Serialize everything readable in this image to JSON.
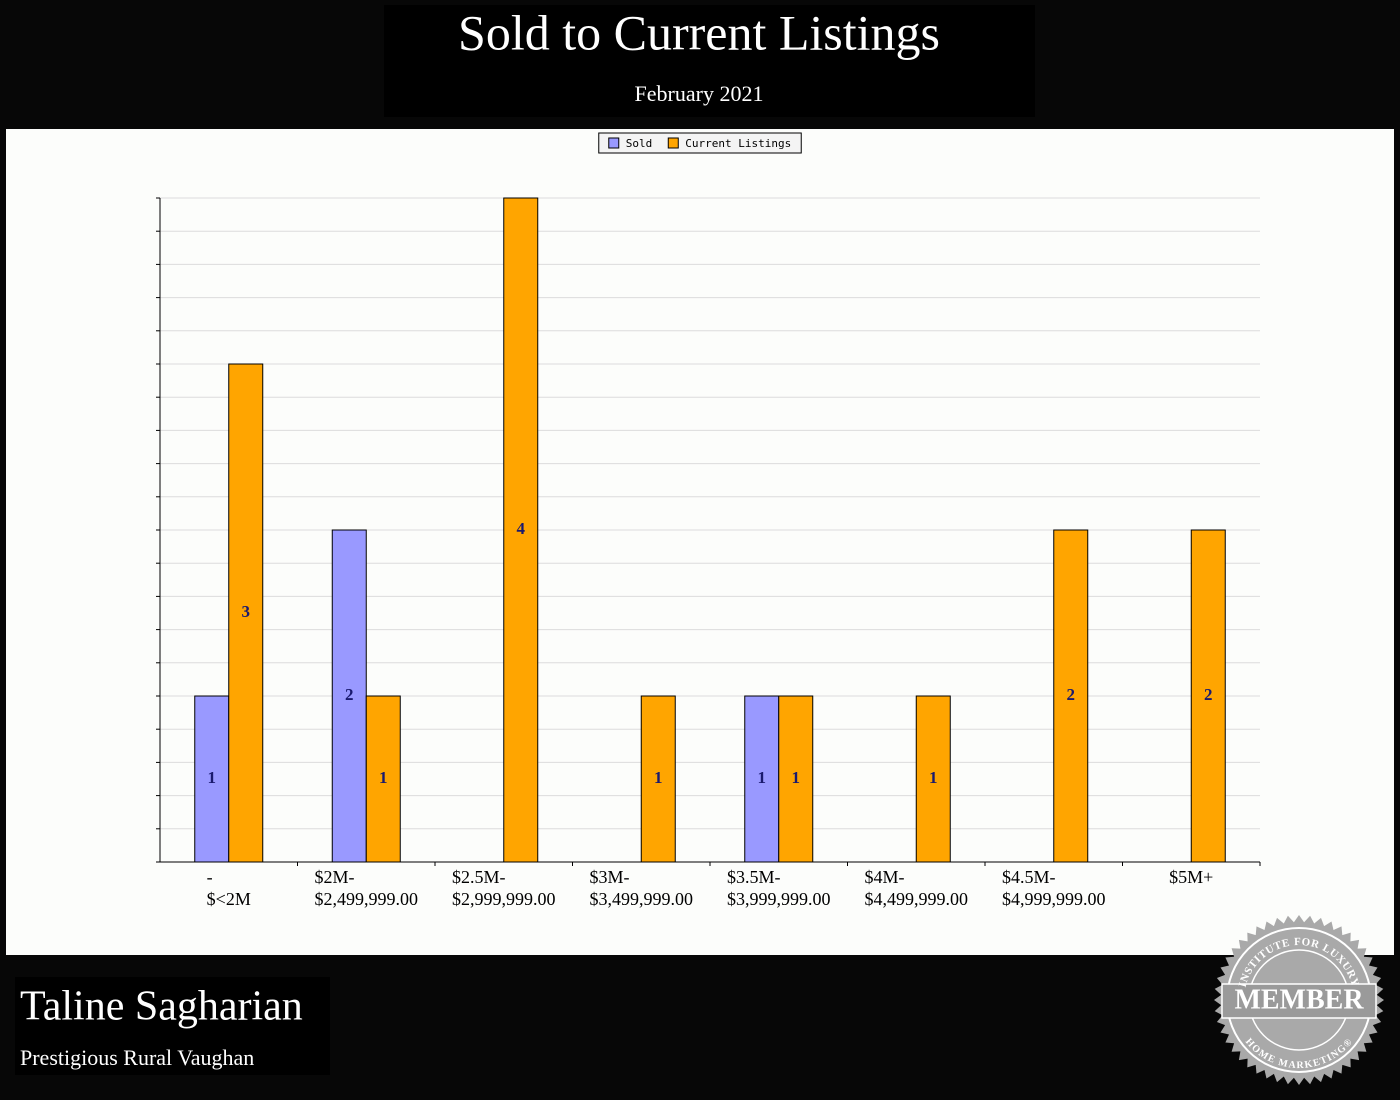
{
  "chart_data": {
    "type": "bar",
    "title": "Sold to Current Listings",
    "subtitle": "February 2021",
    "categories": [
      [
        "-",
        "$<2M"
      ],
      [
        "$2M-",
        "$2,499,999.00"
      ],
      [
        "$2.5M-",
        "$2,999,999.00"
      ],
      [
        "$3M-",
        "$3,499,999.00"
      ],
      [
        "$3.5M-",
        "$3,999,999.00"
      ],
      [
        "$4M-",
        "$4,499,999.00"
      ],
      [
        "$4.5M-",
        "$4,999,999.00"
      ],
      [
        "$5M+"
      ]
    ],
    "series": [
      {
        "name": "Sold",
        "color": "#9999ff",
        "values": [
          1,
          2,
          0,
          0,
          1,
          0,
          0,
          0
        ]
      },
      {
        "name": "Current Listings",
        "color": "#ffa500",
        "values": [
          3,
          1,
          4,
          1,
          1,
          1,
          2,
          2
        ]
      }
    ],
    "ylim": [
      0,
      4
    ],
    "yticks": [
      0,
      0.2,
      0.4,
      0.6,
      0.8,
      1,
      1.2,
      1.4,
      1.6,
      1.8,
      2,
      2.2,
      2.4,
      2.6,
      2.8,
      3,
      3.2,
      3.4,
      3.6,
      3.8,
      4
    ],
    "grid": true,
    "legend": "top"
  },
  "footer": {
    "name": "Taline Sagharian",
    "office": "Prestigious Rural Vaughan",
    "badge": {
      "top": "INSTITUTE FOR LUXURY",
      "center": "MEMBER",
      "bottom": "HOME MARKETING®"
    }
  }
}
